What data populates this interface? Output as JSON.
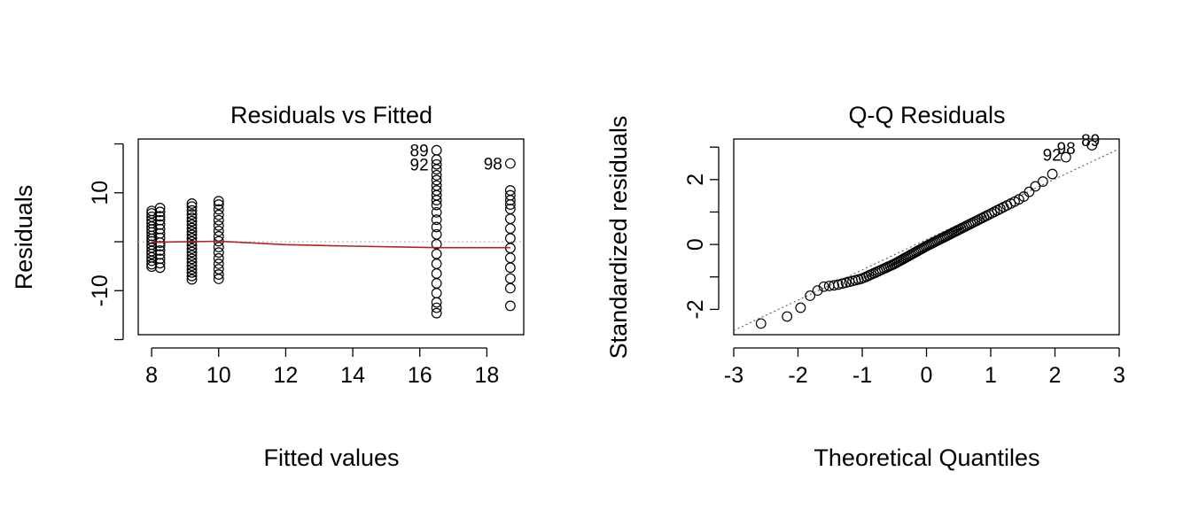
{
  "chart_data": [
    {
      "type": "scatter",
      "title": "Residuals vs Fitted",
      "xlabel": "Fitted values",
      "ylabel": "Residuals",
      "xlim": [
        7.6,
        19.1
      ],
      "ylim": [
        -19,
        21
      ],
      "xticks": [
        8,
        10,
        12,
        14,
        16,
        18
      ],
      "yticks": [
        -10,
        10
      ],
      "yticks_minor": [
        -20,
        0,
        20
      ],
      "zero_line_color": "#BEBEBE",
      "smooth_color": "#B22222",
      "groups": [
        {
          "x": 8.0,
          "residuals": [
            -5.1,
            -4.6,
            -3.9,
            -3.2,
            -2.5,
            -1.9,
            -1.2,
            -0.6,
            0.1,
            0.6,
            1.2,
            1.9,
            2.5,
            3.1,
            3.8,
            4.4,
            5.1,
            5.8,
            6.3
          ]
        },
        {
          "x": 8.25,
          "residuals": [
            -5.3,
            -4.4,
            -3.5,
            -2.6,
            -1.8,
            -0.9,
            -0.2,
            0.8,
            1.7,
            2.6,
            3.5,
            4.4,
            5.2,
            6.1,
            6.9
          ]
        },
        {
          "x": 9.2,
          "residuals": [
            -7.7,
            -7.0,
            -6.3,
            -5.6,
            -4.9,
            -4.2,
            -3.5,
            -2.8,
            -2.1,
            -1.4,
            -0.7,
            0.0,
            0.7,
            1.4,
            2.1,
            2.8,
            3.5,
            4.2,
            4.9,
            5.6,
            6.4,
            7.2,
            7.8
          ]
        },
        {
          "x": 10.0,
          "residuals": [
            -7.6,
            -6.7,
            -5.6,
            -4.5,
            -3.4,
            -2.2,
            -1.1,
            0.1,
            1.1,
            2.2,
            3.3,
            4.4,
            5.5,
            6.6,
            7.6,
            8.3
          ]
        },
        {
          "x": 16.5,
          "residuals": [
            -14.6,
            -13.5,
            -12.4,
            -10.5,
            -8.5,
            -6.5,
            -4.5,
            -2.5,
            -0.5,
            1.5,
            3.0,
            4.5,
            6.0,
            7.5,
            8.5,
            9.5,
            10.5,
            11.5,
            12.6,
            13.6,
            14.8,
            15.8,
            16.8,
            18.7
          ]
        },
        {
          "x": 18.7,
          "residuals": [
            -13.1,
            -9.5,
            -7.5,
            -5.3,
            -3.3,
            -1.3,
            0.7,
            2.7,
            4.7,
            6.7,
            7.6,
            8.5,
            9.5,
            10.5,
            16.0
          ]
        }
      ],
      "smooth": {
        "x": [
          8.0,
          10.0,
          12.0,
          14.0,
          16.5,
          18.7
        ],
        "y": [
          -0.1,
          0.1,
          -0.6,
          -0.9,
          -1.2,
          -1.2
        ]
      },
      "point_labels": [
        {
          "label": "89",
          "x": 16.5,
          "y": 18.7
        },
        {
          "label": "92",
          "x": 16.5,
          "y": 15.8
        },
        {
          "label": "98",
          "x": 18.7,
          "y": 16.0
        }
      ]
    },
    {
      "type": "scatter",
      "title": "Q-Q Residuals",
      "xlabel": "Theoretical Quantiles",
      "ylabel": "Standardized residuals",
      "xlim": [
        -3.0,
        3.0
      ],
      "ylim": [
        -2.78,
        3.25
      ],
      "xticks": [
        -3,
        -2,
        -1,
        0,
        1,
        2,
        3
      ],
      "yticks": [
        -2,
        0,
        2
      ],
      "yticks_minor": [
        -1,
        1,
        3
      ],
      "n_points": 100,
      "refline": {
        "x": [
          -3.0,
          3.0
        ],
        "y": [
          -2.65,
          2.95
        ],
        "color": "#666666"
      },
      "qq_knots": {
        "t": [
          -2.81,
          -2.4,
          -2.2,
          -2.0,
          -1.8,
          -1.6,
          -1.4,
          -1.0,
          -0.5,
          0.0,
          0.5,
          1.0,
          1.3,
          1.5,
          1.7,
          1.9,
          2.0,
          2.1,
          2.2,
          2.4,
          2.81
        ],
        "r": [
          -2.55,
          -2.35,
          -2.25,
          -2.05,
          -1.55,
          -1.3,
          -1.25,
          -1.05,
          -0.6,
          -0.05,
          0.45,
          0.95,
          1.25,
          1.45,
          1.8,
          2.05,
          2.25,
          2.55,
          2.75,
          2.95,
          3.2
        ]
      },
      "point_labels": [
        {
          "label": "89",
          "x": 2.81,
          "y": 3.2
        },
        {
          "label": "98",
          "x": 2.43,
          "y": 2.95
        },
        {
          "label": "92",
          "x": 2.21,
          "y": 2.75
        }
      ]
    }
  ]
}
